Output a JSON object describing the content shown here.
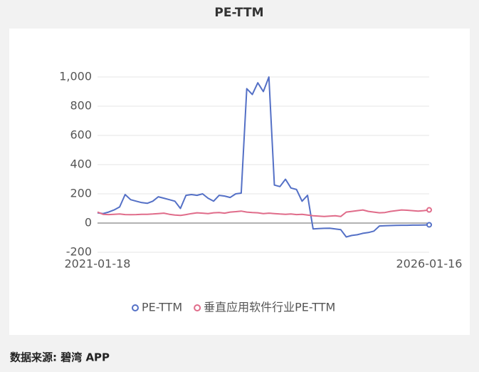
{
  "chart_data": {
    "type": "line",
    "title": "PE-TTM",
    "categories": [
      "2021-01-18",
      null,
      null,
      null,
      null,
      null,
      null,
      null,
      null,
      null,
      null,
      null,
      null,
      null,
      null,
      null,
      null,
      null,
      null,
      null,
      null,
      null,
      null,
      null,
      null,
      null,
      null,
      null,
      null,
      null,
      null,
      null,
      null,
      null,
      null,
      null,
      null,
      null,
      null,
      null,
      null,
      null,
      null,
      null,
      null,
      null,
      null,
      null,
      null,
      null,
      null,
      null,
      null,
      null,
      null,
      null,
      null,
      null,
      null,
      null,
      "2026-01-16"
    ],
    "series": [
      {
        "name": "PE-TTM",
        "color": "#5470c6",
        "values": [
          70,
          65,
          75,
          90,
          110,
          195,
          160,
          150,
          140,
          135,
          150,
          180,
          170,
          160,
          150,
          100,
          190,
          195,
          190,
          200,
          170,
          150,
          190,
          185,
          175,
          200,
          205,
          920,
          880,
          960,
          900,
          1000,
          260,
          250,
          300,
          240,
          230,
          150,
          190,
          -40,
          -38,
          -36,
          -35,
          -40,
          -45,
          -95,
          -85,
          -80,
          -70,
          -65,
          -55,
          -20,
          -18,
          -17,
          -16,
          -15,
          -15,
          -14,
          -14,
          -13,
          -12
        ]
      },
      {
        "name": "垂直应用软件行业PE-TTM",
        "color": "#e06c8a",
        "values": [
          75,
          60,
          58,
          60,
          62,
          58,
          57,
          58,
          60,
          60,
          62,
          65,
          68,
          60,
          55,
          52,
          58,
          65,
          70,
          68,
          65,
          70,
          72,
          68,
          75,
          78,
          82,
          75,
          72,
          70,
          65,
          68,
          65,
          62,
          60,
          62,
          58,
          60,
          55,
          50,
          48,
          45,
          48,
          50,
          45,
          75,
          80,
          85,
          90,
          80,
          75,
          70,
          72,
          80,
          85,
          90,
          88,
          85,
          82,
          85,
          90
        ]
      }
    ],
    "ylim": [
      -200,
      1000
    ],
    "yticks": [
      -200,
      0,
      200,
      400,
      600,
      800,
      {
        "value": 1000,
        "label": "1,000"
      }
    ],
    "grid": true,
    "legend": "bottom"
  },
  "footer": "数据来源: 碧湾 APP"
}
